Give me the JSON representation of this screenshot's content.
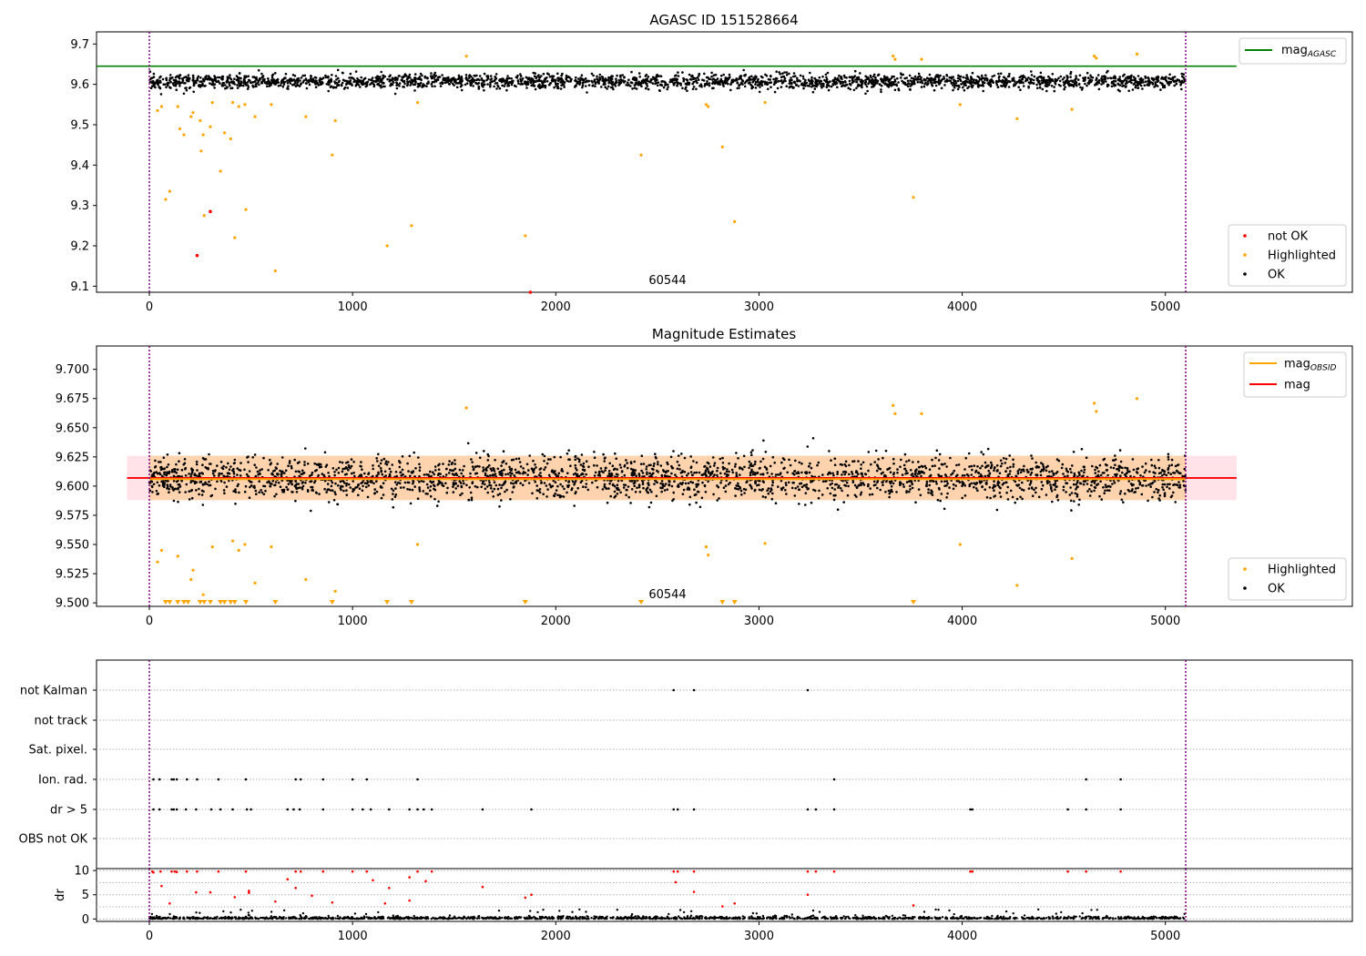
{
  "figure": {
    "title": "AGASC ID 151528664"
  },
  "chart_data": [
    {
      "id": "top",
      "type": "scatter",
      "title": "",
      "xlim": [
        -260,
        5920
      ],
      "ylim": [
        9.085,
        9.73
      ],
      "x_ticks": [
        0,
        1000,
        2000,
        3000,
        4000,
        5000
      ],
      "y_ticks": [
        9.1,
        9.2,
        9.3,
        9.4,
        9.5,
        9.6,
        9.7
      ],
      "y_tick_decimals": 1,
      "vlines": [
        0,
        5100
      ],
      "obsid_label": {
        "text": "60544",
        "x": 2550
      },
      "mag_agasc": 9.645,
      "ok_band": {
        "center": 9.607,
        "spread": 0.02,
        "outer": 0.035,
        "n": 2600
      },
      "not_ok_points": [
        [
          235,
          9.176
        ],
        [
          300,
          9.285
        ],
        [
          1875,
          9.085
        ]
      ],
      "highlighted_points": [
        [
          40,
          9.535
        ],
        [
          60,
          9.545
        ],
        [
          80,
          9.315
        ],
        [
          100,
          9.335
        ],
        [
          140,
          9.545
        ],
        [
          150,
          9.49
        ],
        [
          170,
          9.475
        ],
        [
          205,
          9.52
        ],
        [
          215,
          9.53
        ],
        [
          250,
          9.51
        ],
        [
          255,
          9.435
        ],
        [
          265,
          9.475
        ],
        [
          270,
          9.275
        ],
        [
          300,
          9.495
        ],
        [
          310,
          9.555
        ],
        [
          350,
          9.385
        ],
        [
          370,
          9.48
        ],
        [
          400,
          9.465
        ],
        [
          410,
          9.555
        ],
        [
          420,
          9.22
        ],
        [
          440,
          9.545
        ],
        [
          470,
          9.55
        ],
        [
          475,
          9.29
        ],
        [
          520,
          9.52
        ],
        [
          600,
          9.55
        ],
        [
          620,
          9.138
        ],
        [
          770,
          9.52
        ],
        [
          900,
          9.425
        ],
        [
          915,
          9.51
        ],
        [
          1170,
          9.2
        ],
        [
          1290,
          9.25
        ],
        [
          1320,
          9.555
        ],
        [
          1560,
          9.67
        ],
        [
          1850,
          9.225
        ],
        [
          2420,
          9.425
        ],
        [
          2740,
          9.55
        ],
        [
          2750,
          9.545
        ],
        [
          2820,
          9.445
        ],
        [
          2880,
          9.26
        ],
        [
          3030,
          9.555
        ],
        [
          3660,
          9.67
        ],
        [
          3670,
          9.662
        ],
        [
          3760,
          9.32
        ],
        [
          3800,
          9.662
        ],
        [
          3990,
          9.55
        ],
        [
          4270,
          9.515
        ],
        [
          4540,
          9.538
        ],
        [
          4650,
          9.67
        ],
        [
          4660,
          9.665
        ],
        [
          4860,
          9.675
        ]
      ],
      "legend": {
        "lower_right": [
          {
            "label": "not OK",
            "color": "#ff0000"
          },
          {
            "label": "Highlighted",
            "color": "#ffa500"
          },
          {
            "label": "OK",
            "color": "#000000"
          }
        ],
        "upper_right": [
          {
            "label": "mag",
            "sub": "AGASC",
            "color": "#008000"
          }
        ]
      }
    },
    {
      "id": "middle",
      "type": "scatter",
      "title": "Magnitude Estimates",
      "xlim": [
        -260,
        5920
      ],
      "ylim": [
        9.497,
        9.72
      ],
      "x_ticks": [
        0,
        1000,
        2000,
        3000,
        4000,
        5000
      ],
      "y_ticks": [
        9.5,
        9.525,
        9.55,
        9.575,
        9.6,
        9.625,
        9.65,
        9.675,
        9.7
      ],
      "y_tick_decimals": 3,
      "vlines": [
        0,
        5100
      ],
      "obsid_label": {
        "text": "60544",
        "x": 2550
      },
      "mag": 9.607,
      "mag_obsid": 9.606,
      "mag_band": [
        9.588,
        9.626
      ],
      "ok_band": {
        "center": 9.607,
        "spread": 0.02,
        "outer": 0.045,
        "n": 2600
      },
      "highlighted_points": [
        [
          40,
          9.535
        ],
        [
          60,
          9.545
        ],
        [
          140,
          9.54
        ],
        [
          205,
          9.52
        ],
        [
          215,
          9.528
        ],
        [
          265,
          9.507
        ],
        [
          310,
          9.548
        ],
        [
          410,
          9.553
        ],
        [
          440,
          9.545
        ],
        [
          470,
          9.55
        ],
        [
          520,
          9.517
        ],
        [
          600,
          9.548
        ],
        [
          770,
          9.52
        ],
        [
          915,
          9.51
        ],
        [
          1320,
          9.55
        ],
        [
          1560,
          9.667
        ],
        [
          2740,
          9.548
        ],
        [
          2750,
          9.541
        ],
        [
          3030,
          9.551
        ],
        [
          3660,
          9.669
        ],
        [
          3670,
          9.662
        ],
        [
          3800,
          9.662
        ],
        [
          3990,
          9.55
        ],
        [
          4270,
          9.515
        ],
        [
          4540,
          9.538
        ],
        [
          4650,
          9.671
        ],
        [
          4660,
          9.664
        ],
        [
          4860,
          9.675
        ]
      ],
      "lower_markers_x": [
        80,
        100,
        140,
        170,
        190,
        250,
        270,
        300,
        350,
        370,
        400,
        420,
        475,
        620,
        900,
        1170,
        1290,
        1850,
        2420,
        2820,
        2880,
        3760
      ],
      "legend": {
        "lower_right": [
          {
            "label": "Highlighted",
            "color": "#ffa500"
          },
          {
            "label": "OK",
            "color": "#000000"
          }
        ],
        "upper_right": [
          {
            "label": "mag",
            "sub": "OBSID",
            "color": "#ffa500"
          },
          {
            "label": "mag",
            "sub": "",
            "color": "#ff0000"
          }
        ]
      }
    },
    {
      "id": "flags",
      "type": "scatter",
      "xlim": [
        -260,
        5920
      ],
      "vlines": [
        0,
        5100
      ],
      "rows": [
        {
          "label": "not Kalman",
          "x": [
            2580,
            2680,
            3240
          ]
        },
        {
          "label": "not track",
          "x": []
        },
        {
          "label": "Sat. pixel.",
          "x": []
        },
        {
          "label": "Ion. rad.",
          "x": [
            20,
            50,
            110,
            120,
            135,
            185,
            235,
            340,
            475,
            720,
            745,
            855,
            1000,
            1070,
            1320,
            3370,
            4610,
            4780
          ]
        },
        {
          "label": "dr > 5",
          "x": [
            20,
            50,
            110,
            120,
            135,
            180,
            230,
            305,
            350,
            410,
            480,
            500,
            680,
            710,
            740,
            855,
            1000,
            1050,
            1090,
            1180,
            1280,
            1320,
            1350,
            1390,
            1640,
            1880,
            2580,
            2600,
            2680,
            3240,
            3280,
            3370,
            4040,
            4050,
            4520,
            4610,
            4780
          ]
        },
        {
          "label": "OBS not OK",
          "x": []
        }
      ]
    },
    {
      "id": "dr",
      "type": "scatter",
      "xlim": [
        -260,
        5920
      ],
      "ylim": [
        -0.5,
        10.4
      ],
      "y_ticks": [
        0,
        5,
        10
      ],
      "x_ticks": [
        0,
        1000,
        2000,
        3000,
        4000,
        5000
      ],
      "ylabel": "dr",
      "vlines": [
        0,
        5100
      ],
      "red_points": [
        [
          15,
          9.8
        ],
        [
          20,
          9.6
        ],
        [
          55,
          9.8
        ],
        [
          60,
          6.8
        ],
        [
          100,
          3.2
        ],
        [
          110,
          9.8
        ],
        [
          125,
          9.8
        ],
        [
          135,
          9.7
        ],
        [
          185,
          9.8
        ],
        [
          230,
          5.5
        ],
        [
          235,
          9.8
        ],
        [
          300,
          5.5
        ],
        [
          340,
          9.8
        ],
        [
          420,
          4.5
        ],
        [
          475,
          9.8
        ],
        [
          490,
          5.4
        ],
        [
          490,
          5.8
        ],
        [
          620,
          3.6
        ],
        [
          680,
          8.2
        ],
        [
          720,
          6.4
        ],
        [
          720,
          9.8
        ],
        [
          745,
          9.8
        ],
        [
          800,
          4.8
        ],
        [
          855,
          9.8
        ],
        [
          900,
          3.4
        ],
        [
          1000,
          9.8
        ],
        [
          1070,
          9.8
        ],
        [
          1100,
          8.0
        ],
        [
          1160,
          3.2
        ],
        [
          1180,
          6.4
        ],
        [
          1280,
          8.6
        ],
        [
          1280,
          3.8
        ],
        [
          1320,
          9.8
        ],
        [
          1360,
          7.8
        ],
        [
          1390,
          9.8
        ],
        [
          1640,
          6.6
        ],
        [
          1850,
          4.4
        ],
        [
          1880,
          5.0
        ],
        [
          2580,
          9.8
        ],
        [
          2590,
          7.6
        ],
        [
          2600,
          9.8
        ],
        [
          2680,
          9.8
        ],
        [
          2680,
          5.6
        ],
        [
          2820,
          2.6
        ],
        [
          2880,
          3.2
        ],
        [
          3240,
          9.8
        ],
        [
          3240,
          5.0
        ],
        [
          3280,
          9.8
        ],
        [
          3370,
          9.8
        ],
        [
          3760,
          2.8
        ],
        [
          4040,
          9.8
        ],
        [
          4050,
          9.8
        ],
        [
          4520,
          9.8
        ],
        [
          4610,
          9.8
        ],
        [
          4780,
          9.8
        ]
      ],
      "black_n": 1500
    }
  ]
}
